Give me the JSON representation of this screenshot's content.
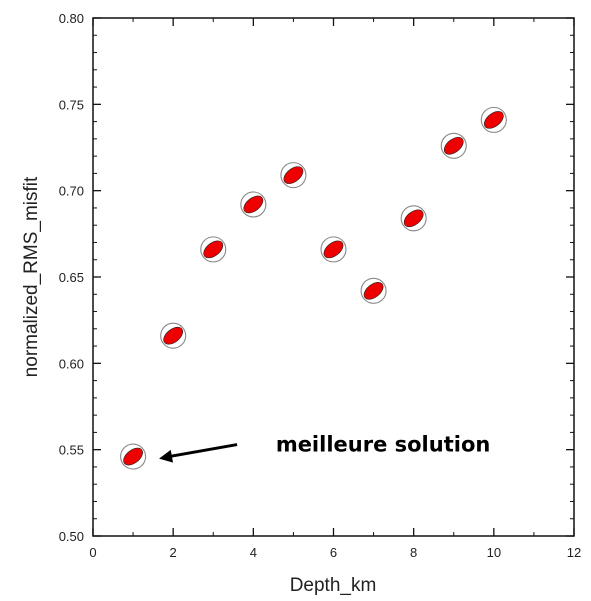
{
  "chart_data": {
    "type": "scatter",
    "title": "",
    "xlabel": "Depth_km",
    "ylabel": "normalized_RMS_misfit",
    "xlim": [
      0,
      12
    ],
    "ylim": [
      0.5,
      0.8
    ],
    "xticks": [
      0,
      2,
      4,
      6,
      8,
      10,
      12
    ],
    "yticks": [
      0.5,
      0.55,
      0.6,
      0.65,
      0.7,
      0.75,
      0.8
    ],
    "xticklabels": [
      "0",
      "2",
      "4",
      "6",
      "8",
      "10",
      "12"
    ],
    "yticklabels": [
      "0.50",
      "0.55",
      "0.60",
      "0.65",
      "0.70",
      "0.75",
      "0.80"
    ],
    "grid": false,
    "marker": "focal-mechanism beachball",
    "series": [
      {
        "color": "#ee0000",
        "points": [
          {
            "x": 1,
            "y": 0.546
          },
          {
            "x": 2,
            "y": 0.616
          },
          {
            "x": 3,
            "y": 0.666
          },
          {
            "x": 4,
            "y": 0.692
          },
          {
            "x": 5,
            "y": 0.709
          },
          {
            "x": 6,
            "y": 0.666
          },
          {
            "x": 7,
            "y": 0.642
          },
          {
            "x": 8,
            "y": 0.684
          },
          {
            "x": 9,
            "y": 0.726
          },
          {
            "x": 10,
            "y": 0.741
          }
        ]
      }
    ],
    "annotations": [
      {
        "text": "meilleure solution",
        "arrow_to": {
          "x": 1,
          "y": 0.546
        }
      }
    ]
  }
}
